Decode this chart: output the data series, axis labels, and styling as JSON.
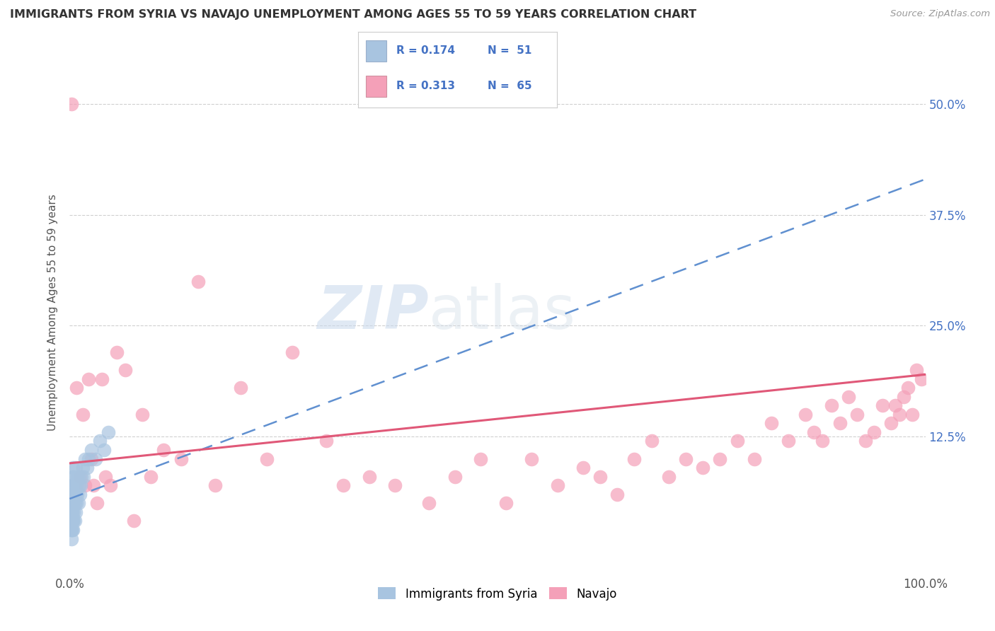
{
  "title": "IMMIGRANTS FROM SYRIA VS NAVAJO UNEMPLOYMENT AMONG AGES 55 TO 59 YEARS CORRELATION CHART",
  "source": "Source: ZipAtlas.com",
  "ylabel": "Unemployment Among Ages 55 to 59 years",
  "xlim": [
    0,
    1.0
  ],
  "ylim": [
    -0.03,
    0.56
  ],
  "color_syria": "#a8c4e0",
  "color_navajo": "#f4a0b8",
  "color_trend_syria": "#6090d0",
  "color_trend_navajo": "#e05878",
  "color_legend_text": "#4472c4",
  "watermark_zip": "ZIP",
  "watermark_atlas": "atlas",
  "syria_x": [
    0.001,
    0.001,
    0.001,
    0.001,
    0.001,
    0.002,
    0.002,
    0.002,
    0.002,
    0.002,
    0.002,
    0.003,
    0.003,
    0.003,
    0.003,
    0.003,
    0.004,
    0.004,
    0.004,
    0.004,
    0.004,
    0.005,
    0.005,
    0.005,
    0.005,
    0.006,
    0.006,
    0.006,
    0.007,
    0.007,
    0.007,
    0.008,
    0.008,
    0.009,
    0.009,
    0.01,
    0.01,
    0.011,
    0.012,
    0.013,
    0.014,
    0.015,
    0.016,
    0.018,
    0.02,
    0.022,
    0.025,
    0.03,
    0.035,
    0.04,
    0.045
  ],
  "syria_y": [
    0.02,
    0.03,
    0.04,
    0.05,
    0.06,
    0.01,
    0.02,
    0.03,
    0.04,
    0.05,
    0.07,
    0.02,
    0.03,
    0.04,
    0.06,
    0.08,
    0.02,
    0.03,
    0.05,
    0.07,
    0.09,
    0.03,
    0.04,
    0.06,
    0.08,
    0.03,
    0.05,
    0.07,
    0.04,
    0.06,
    0.09,
    0.05,
    0.07,
    0.06,
    0.08,
    0.05,
    0.08,
    0.07,
    0.06,
    0.07,
    0.08,
    0.09,
    0.08,
    0.1,
    0.09,
    0.1,
    0.11,
    0.1,
    0.12,
    0.11,
    0.13
  ],
  "navajo_x": [
    0.002,
    0.008,
    0.012,
    0.015,
    0.018,
    0.022,
    0.025,
    0.028,
    0.032,
    0.038,
    0.042,
    0.048,
    0.055,
    0.065,
    0.075,
    0.085,
    0.095,
    0.11,
    0.13,
    0.15,
    0.17,
    0.2,
    0.23,
    0.26,
    0.3,
    0.32,
    0.35,
    0.38,
    0.42,
    0.45,
    0.48,
    0.51,
    0.54,
    0.57,
    0.6,
    0.62,
    0.64,
    0.66,
    0.68,
    0.7,
    0.72,
    0.74,
    0.76,
    0.78,
    0.8,
    0.82,
    0.84,
    0.86,
    0.87,
    0.88,
    0.89,
    0.9,
    0.91,
    0.92,
    0.93,
    0.94,
    0.95,
    0.96,
    0.965,
    0.97,
    0.975,
    0.98,
    0.985,
    0.99,
    0.995
  ],
  "navajo_y": [
    0.5,
    0.18,
    0.08,
    0.15,
    0.07,
    0.19,
    0.1,
    0.07,
    0.05,
    0.19,
    0.08,
    0.07,
    0.22,
    0.2,
    0.03,
    0.15,
    0.08,
    0.11,
    0.1,
    0.3,
    0.07,
    0.18,
    0.1,
    0.22,
    0.12,
    0.07,
    0.08,
    0.07,
    0.05,
    0.08,
    0.1,
    0.05,
    0.1,
    0.07,
    0.09,
    0.08,
    0.06,
    0.1,
    0.12,
    0.08,
    0.1,
    0.09,
    0.1,
    0.12,
    0.1,
    0.14,
    0.12,
    0.15,
    0.13,
    0.12,
    0.16,
    0.14,
    0.17,
    0.15,
    0.12,
    0.13,
    0.16,
    0.14,
    0.16,
    0.15,
    0.17,
    0.18,
    0.15,
    0.2,
    0.19
  ]
}
